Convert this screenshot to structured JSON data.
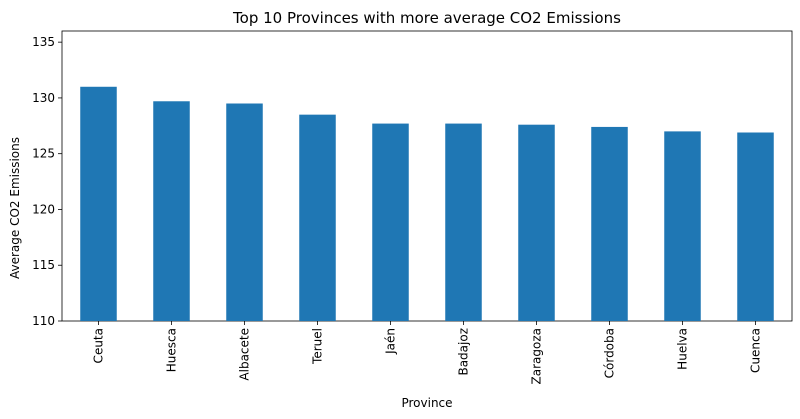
{
  "chart_data": {
    "type": "bar",
    "title": "Top 10 Provinces with more average CO2 Emissions",
    "xlabel": "Province",
    "ylabel": "Average CO2 Emissions",
    "categories": [
      "Ceuta",
      "Huesca",
      "Albacete",
      "Teruel",
      "Jaén",
      "Badajoz",
      "Zaragoza",
      "Córdoba",
      "Huelva",
      "Cuenca"
    ],
    "values": [
      131.0,
      129.7,
      129.5,
      128.5,
      127.7,
      127.7,
      127.6,
      127.4,
      127.0,
      126.9
    ],
    "ylim": [
      110,
      136
    ],
    "yticks": [
      110,
      115,
      120,
      125,
      130,
      135
    ],
    "bar_color": "#1f77b4",
    "grid": false,
    "legend": "none"
  }
}
